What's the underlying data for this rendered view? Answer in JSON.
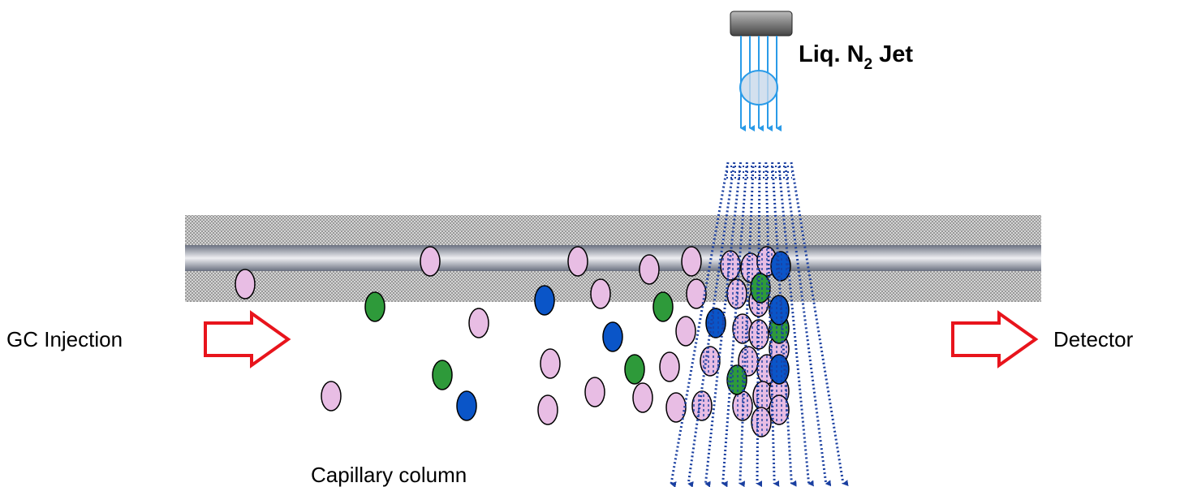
{
  "labels": {
    "injection": "GC Injection",
    "detector": "Detector",
    "column": "Capillary column"
  },
  "jet": {
    "text": "Liq. N",
    "subscript": "2",
    "suffix": "Jet"
  }
}
